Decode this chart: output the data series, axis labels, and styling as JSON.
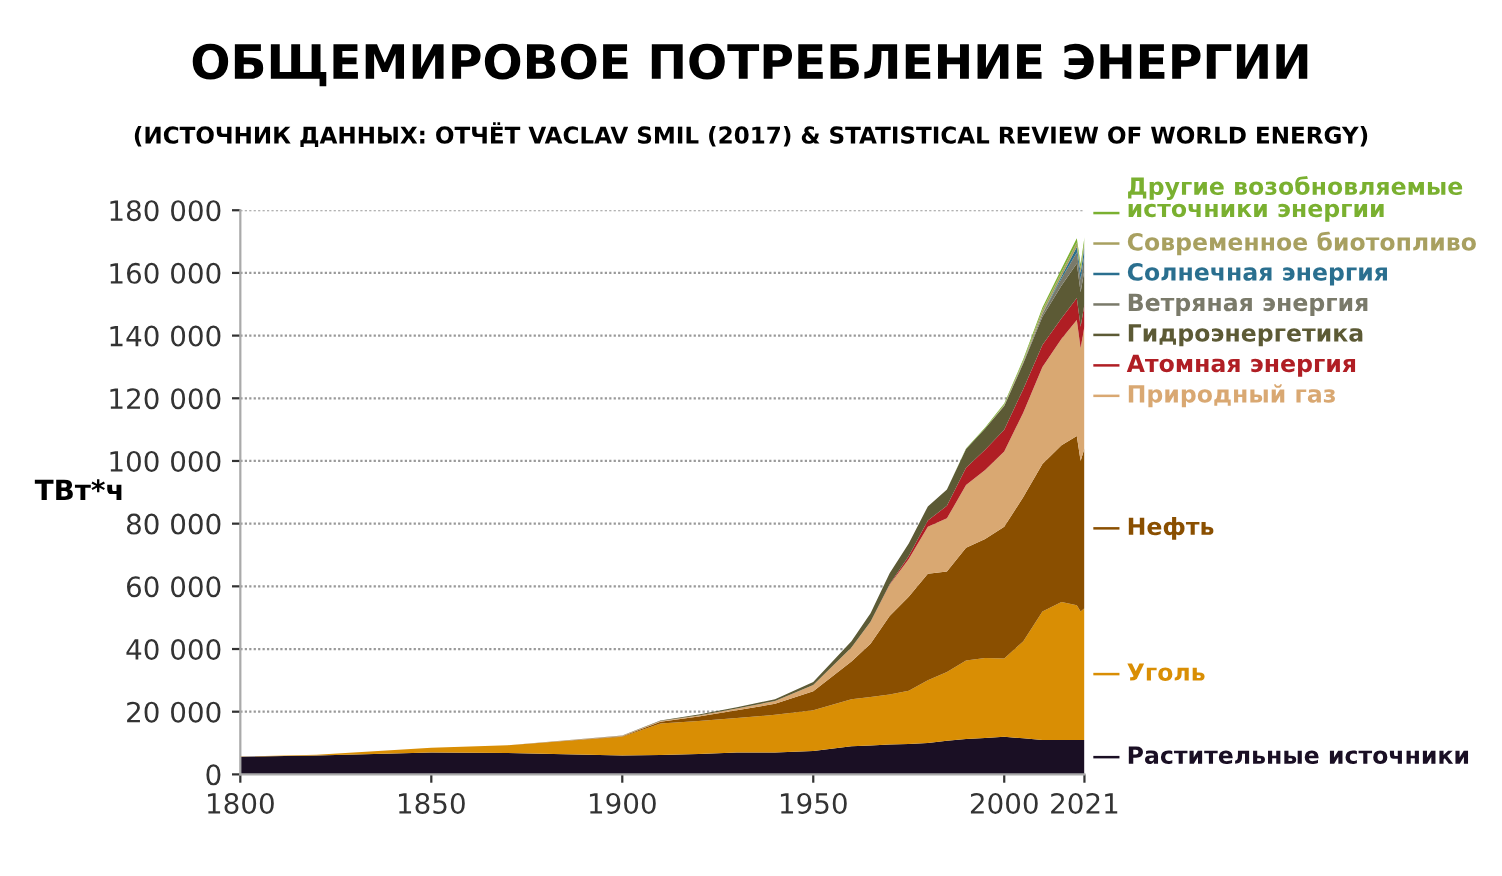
{
  "chart_data": {
    "type": "area",
    "stacked": true,
    "title": "ОБЩЕМИРОВОЕ ПОТРЕБЛЕНИЕ ЭНЕРГИИ",
    "subtitle": "(ИСТОЧНИК ДАННЫХ: ОТЧЁТ VACLAV SMIL (2017) & STATISTICAL REVIEW OF WORLD ENERGY)",
    "ylabel": "ТВт*ч",
    "x": [
      1800,
      1820,
      1850,
      1870,
      1900,
      1910,
      1920,
      1930,
      1940,
      1950,
      1960,
      1965,
      1970,
      1975,
      1980,
      1985,
      1990,
      1995,
      2000,
      2005,
      2010,
      2015,
      2019,
      2020,
      2021
    ],
    "series": [
      {
        "name": "Растительные источники",
        "color": "#1a0f24",
        "values": [
          5600,
          6000,
          7000,
          6800,
          6000,
          6200,
          6500,
          7000,
          7000,
          7500,
          9000,
          9200,
          9500,
          9700,
          10000,
          10700,
          11300,
          11600,
          12000,
          11500,
          11000,
          11000,
          11000,
          11000,
          11000
        ]
      },
      {
        "name": "Уголь",
        "color": "#d98e04",
        "values": [
          100,
          300,
          1500,
          2500,
          6000,
          10000,
          10500,
          11000,
          12000,
          13000,
          15000,
          15500,
          16000,
          17000,
          20000,
          22000,
          25000,
          25500,
          25000,
          31000,
          41000,
          44000,
          43000,
          41000,
          42000
        ]
      },
      {
        "name": "Нефть",
        "color": "#8a4f00",
        "values": [
          0,
          0,
          0,
          0,
          200,
          600,
          1500,
          2500,
          3500,
          6000,
          12000,
          17000,
          25000,
          30000,
          34000,
          32000,
          36000,
          38000,
          42000,
          46000,
          47000,
          50000,
          54000,
          48000,
          51000
        ]
      },
      {
        "name": "Природный газ",
        "color": "#d9a872",
        "values": [
          0,
          0,
          0,
          0,
          100,
          200,
          300,
          500,
          900,
          2000,
          4500,
          7000,
          10000,
          12000,
          15000,
          17000,
          20000,
          22000,
          24000,
          27000,
          31000,
          34000,
          37000,
          36000,
          39000
        ]
      },
      {
        "name": "Атомная энергия",
        "color": "#b01e24",
        "values": [
          0,
          0,
          0,
          0,
          0,
          0,
          0,
          0,
          0,
          0,
          0,
          0,
          200,
          1000,
          2000,
          4000,
          5500,
          6500,
          7000,
          7500,
          7000,
          6500,
          7000,
          6800,
          7000
        ]
      },
      {
        "name": "Гидроэнергетика",
        "color": "#5c5a35",
        "values": [
          0,
          0,
          0,
          0,
          100,
          200,
          300,
          400,
          600,
          1000,
          2000,
          2700,
          3500,
          4000,
          4500,
          5200,
          6000,
          6800,
          7500,
          8200,
          9000,
          10500,
          11000,
          11000,
          11000
        ]
      },
      {
        "name": "Ветряная энергия",
        "color": "#7a7a6a",
        "values": [
          0,
          0,
          0,
          0,
          0,
          0,
          0,
          0,
          0,
          0,
          0,
          0,
          0,
          0,
          0,
          0,
          0,
          0,
          100,
          300,
          900,
          2200,
          3500,
          4000,
          4800
        ]
      },
      {
        "name": "Солнечная энергия",
        "color": "#2a6f8f",
        "values": [
          0,
          0,
          0,
          0,
          0,
          0,
          0,
          0,
          0,
          0,
          0,
          0,
          0,
          0,
          0,
          0,
          0,
          0,
          0,
          0,
          100,
          700,
          1800,
          2200,
          2700
        ]
      },
      {
        "name": "Современное биотопливо",
        "color": "#a8a060",
        "values": [
          0,
          0,
          0,
          0,
          0,
          0,
          0,
          0,
          0,
          0,
          0,
          0,
          0,
          0,
          0,
          0,
          0,
          0,
          300,
          500,
          1200,
          1300,
          1400,
          1400,
          1400
        ]
      },
      {
        "name": "Другие возобновляемые\nисточники энергии",
        "color": "#7ab030",
        "values": [
          0,
          0,
          0,
          0,
          0,
          0,
          0,
          0,
          0,
          0,
          0,
          0,
          0,
          0,
          0,
          0,
          200,
          300,
          400,
          500,
          800,
          1100,
          1400,
          1400,
          1500
        ]
      }
    ],
    "xlim": [
      1800,
      2021
    ],
    "xticks": [
      1800,
      1850,
      1900,
      1950,
      2000,
      2021
    ],
    "ylim": [
      0,
      180000
    ],
    "yticks": [
      0,
      {
        "value": 20000,
        "label": "20 000"
      },
      {
        "value": 40000,
        "label": "40 000"
      },
      {
        "value": 60000,
        "label": "60 000"
      },
      {
        "value": 80000,
        "label": "80 000"
      },
      {
        "value": 100000,
        "label": "100 000"
      },
      {
        "value": 120000,
        "label": "120 000"
      },
      {
        "value": 140000,
        "label": "140 000"
      },
      {
        "value": 160000,
        "label": "160 000"
      },
      {
        "value": 180000,
        "label": "180 000"
      }
    ],
    "grid": "y",
    "legend": "right"
  }
}
